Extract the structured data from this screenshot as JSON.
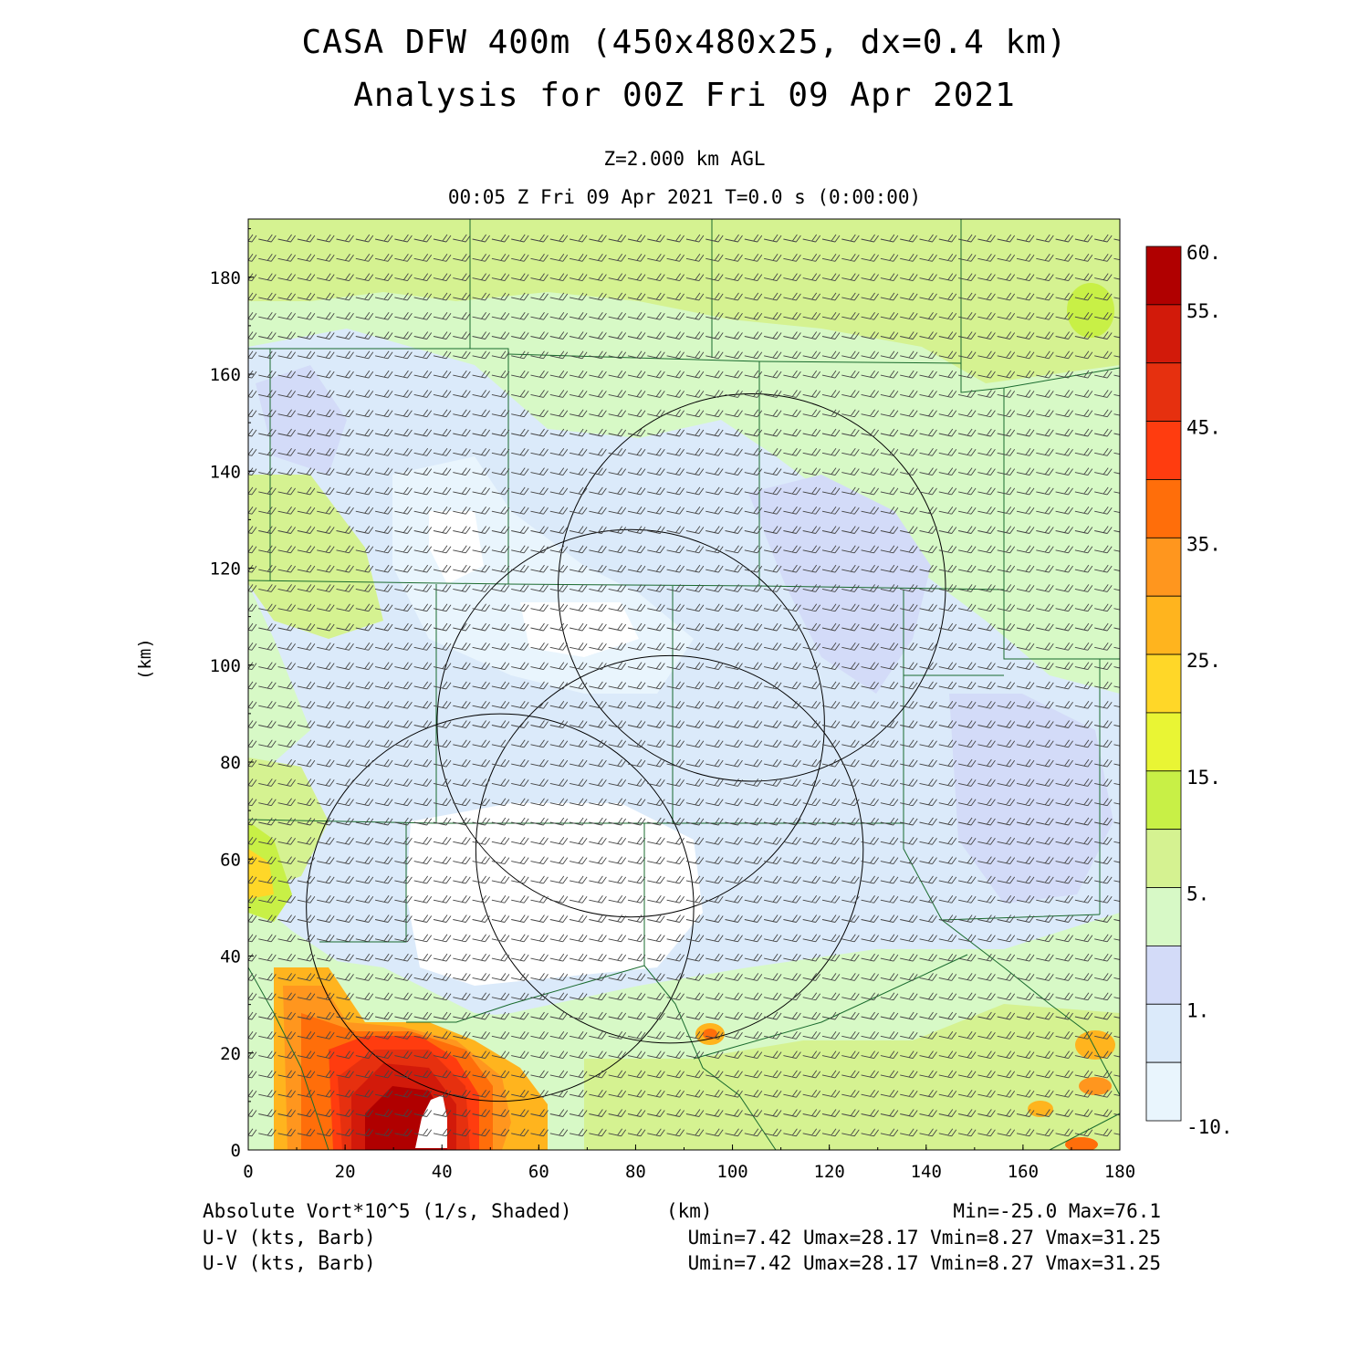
{
  "header": {
    "title_line1": "CASA DFW 400m (450x480x25, dx=0.4 km)",
    "title_line2": "Analysis for 00Z Fri 09 Apr 2021",
    "level": "Z=2.000 km AGL",
    "time": "00:05 Z Fri 09 Apr 2021    T=0.0 s (0:00:00)"
  },
  "axes": {
    "x_label": "(km)",
    "y_label": "(km)",
    "x_range": [
      0,
      180
    ],
    "y_range": [
      0,
      192
    ],
    "x_ticks": [
      0,
      20,
      40,
      60,
      80,
      100,
      120,
      140,
      160,
      180
    ],
    "y_ticks": [
      0,
      20,
      40,
      60,
      80,
      100,
      120,
      140,
      160,
      180
    ]
  },
  "colorbar": {
    "labels": [
      "60.",
      "55.",
      "45.",
      "35.",
      "25.",
      "15.",
      "5.",
      "1.",
      "-10."
    ],
    "colors": [
      "#b00000",
      "#d21a0a",
      "#e6300f",
      "#ff3c0f",
      "#ff6e0a",
      "#ff961e",
      "#ffb41e",
      "#ffd728",
      "#e9f534",
      "#c8f046",
      "#d5f291",
      "#d7f9c6",
      "#d3dbf8",
      "#dbeafa",
      "#e9f5fd"
    ]
  },
  "footer": {
    "field": "Absolute Vort*10^5 (1/s, Shaded)",
    "x_unit": "(km)",
    "minmax": "Min=-25.0 Max=76.1",
    "barb1": "U-V (kts, Barb)",
    "barb1_stats": "Umin=7.42 Umax=28.17 Vmin=8.27 Vmax=31.25",
    "barb2": "U-V (kts, Barb)",
    "barb2_stats": "Umin=7.42 Umax=28.17 Vmin=8.27 Vmax=31.25"
  },
  "radar_rings": [
    {
      "cx_km": 104,
      "cy_km": 116,
      "r_km": 40
    },
    {
      "cx_km": 79,
      "cy_km": 88,
      "r_km": 40
    },
    {
      "cx_km": 52,
      "cy_km": 50,
      "r_km": 40
    },
    {
      "cx_km": 87,
      "cy_km": 62,
      "r_km": 40
    }
  ]
}
